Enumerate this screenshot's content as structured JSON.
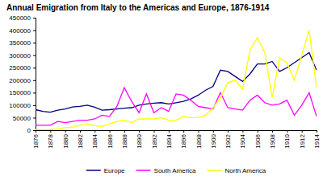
{
  "chart_data": {
    "type": "line",
    "title": "Annual Emigration from Italy to the Americas and Europe, 1876-1914",
    "x": [
      1876,
      1877,
      1878,
      1879,
      1880,
      1881,
      1882,
      1883,
      1884,
      1885,
      1886,
      1887,
      1888,
      1889,
      1890,
      1891,
      1892,
      1893,
      1894,
      1895,
      1896,
      1897,
      1898,
      1899,
      1900,
      1901,
      1902,
      1903,
      1904,
      1905,
      1906,
      1907,
      1908,
      1909,
      1910,
      1911,
      1912,
      1913,
      1914
    ],
    "series": [
      {
        "name": "Europe",
        "color": "#000080",
        "values": [
          82000,
          75000,
          72000,
          80000,
          85000,
          93000,
          95000,
          100000,
          92000,
          80000,
          82000,
          85000,
          88000,
          90000,
          100000,
          105000,
          108000,
          110000,
          105000,
          110000,
          115000,
          125000,
          140000,
          160000,
          175000,
          240000,
          235000,
          215000,
          195000,
          225000,
          265000,
          265000,
          275000,
          235000,
          250000,
          270000,
          290000,
          310000,
          240000
        ]
      },
      {
        "name": "South America",
        "color": "#ff00ff",
        "values": [
          20000,
          20000,
          20000,
          35000,
          30000,
          35000,
          40000,
          40000,
          45000,
          60000,
          55000,
          95000,
          170000,
          115000,
          70000,
          145000,
          70000,
          90000,
          75000,
          145000,
          140000,
          120000,
          95000,
          90000,
          85000,
          150000,
          90000,
          85000,
          80000,
          120000,
          140000,
          110000,
          100000,
          105000,
          120000,
          60000,
          100000,
          150000,
          55000
        ]
      },
      {
        "name": "North America",
        "color": "#ffff00",
        "values": [
          3000,
          2000,
          3000,
          5000,
          10000,
          12000,
          20000,
          25000,
          18000,
          15000,
          25000,
          35000,
          40000,
          30000,
          45000,
          45000,
          45000,
          50000,
          40000,
          40000,
          55000,
          50000,
          50000,
          60000,
          90000,
          130000,
          190000,
          200000,
          165000,
          320000,
          370000,
          310000,
          130000,
          290000,
          270000,
          200000,
          300000,
          400000,
          170000
        ]
      }
    ],
    "xlim": [
      1876,
      1914
    ],
    "xticks": [
      1876,
      1878,
      1880,
      1882,
      1884,
      1886,
      1888,
      1890,
      1892,
      1894,
      1896,
      1898,
      1900,
      1902,
      1904,
      1906,
      1908,
      1910,
      1912,
      1914
    ],
    "ylim": [
      0,
      450000
    ],
    "yticks": [
      0,
      50000,
      100000,
      150000,
      200000,
      250000,
      300000,
      350000,
      400000,
      450000
    ],
    "grid": false,
    "legend": "bottom"
  }
}
